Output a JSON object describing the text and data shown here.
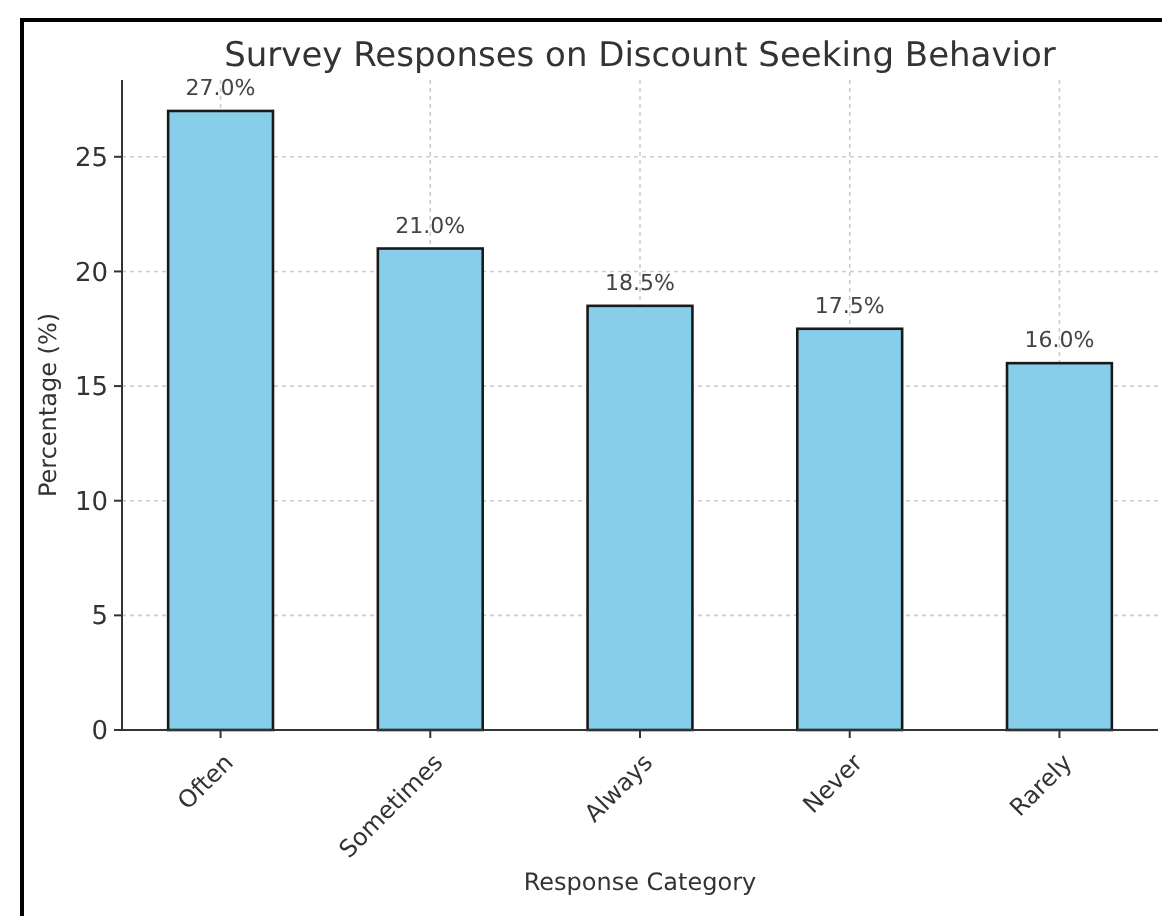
{
  "chart_data": {
    "type": "bar",
    "title": "Survey Responses on Discount Seeking Behavior",
    "xlabel": "Response Category",
    "ylabel": "Percentage (%)",
    "categories": [
      "Often",
      "Sometimes",
      "Always",
      "Never",
      "Rarely"
    ],
    "values": [
      27.0,
      21.0,
      18.5,
      17.5,
      16.0
    ],
    "color": "#87ceeb",
    "value_labels": [
      "27.0%",
      "21.0%",
      "18.5%",
      "17.5%",
      "16.0%"
    ],
    "ylim": [
      0,
      28.35
    ],
    "yticks": [
      0,
      5,
      10,
      15,
      20,
      25
    ],
    "grid": true
  }
}
